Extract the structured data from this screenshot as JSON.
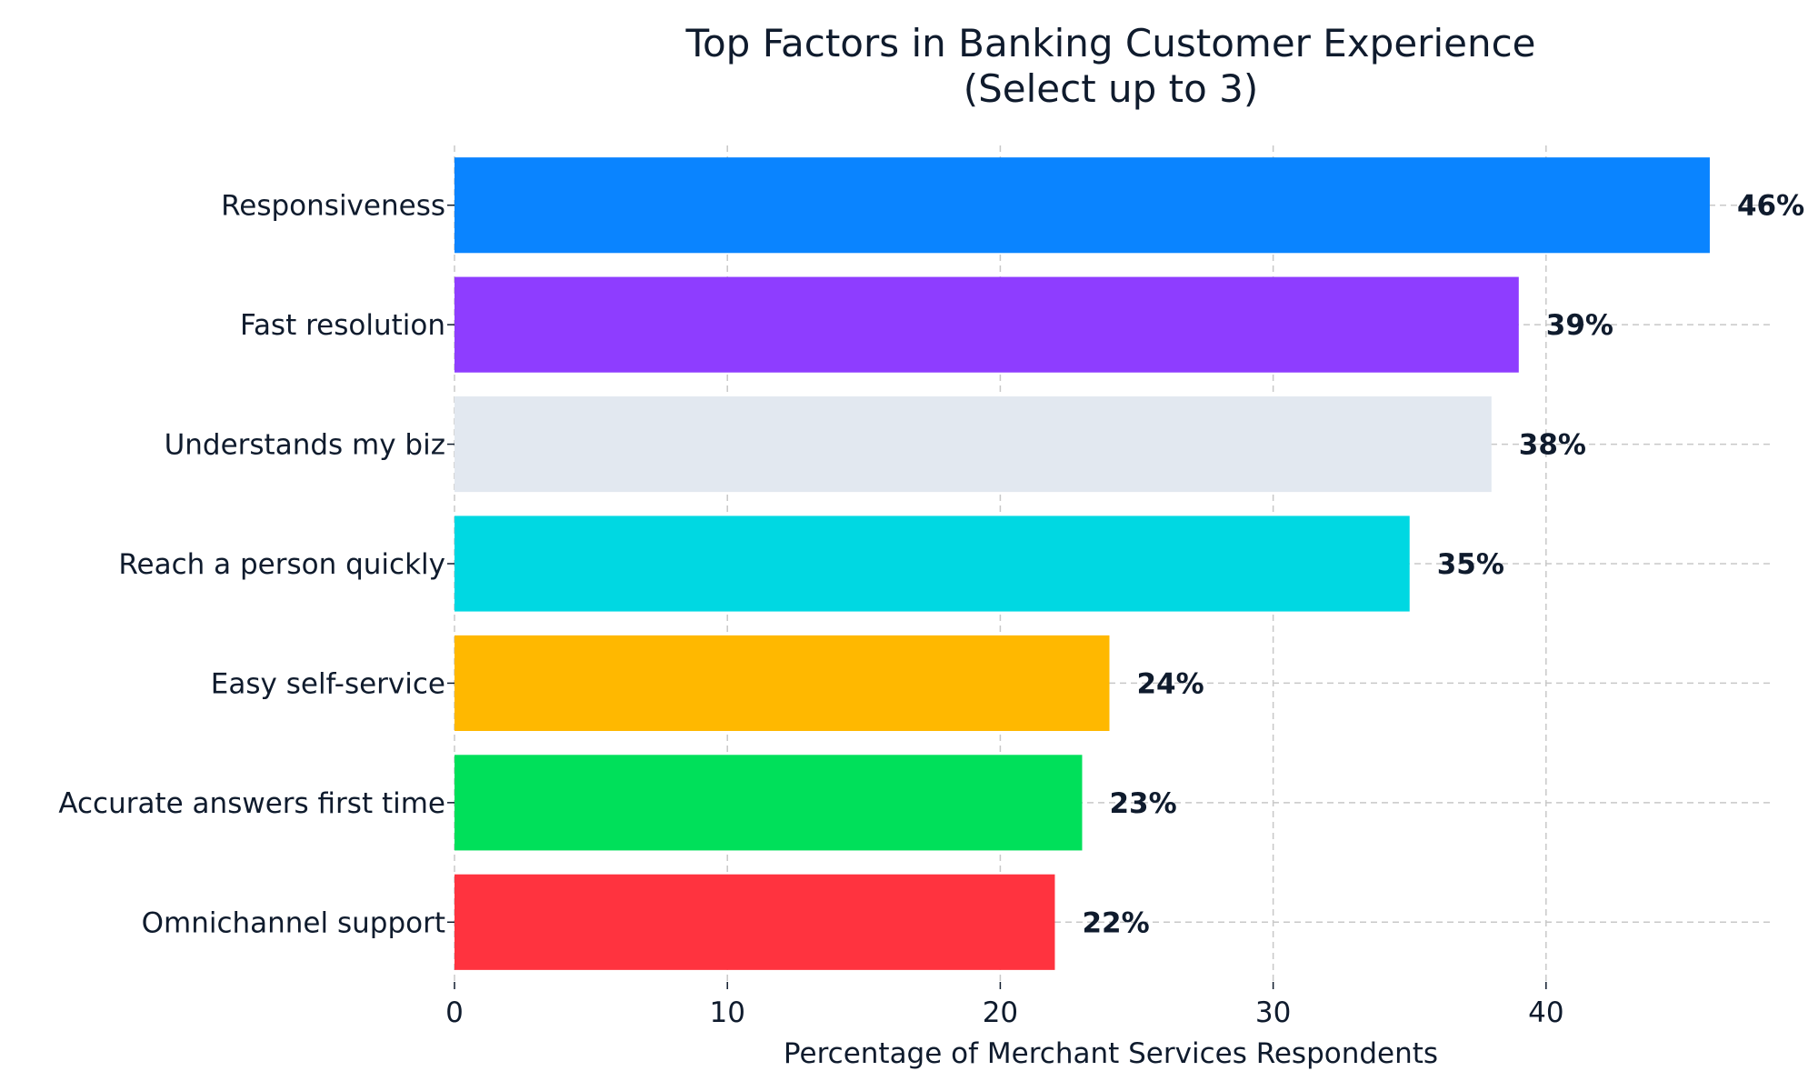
{
  "chart_data": {
    "type": "bar",
    "orientation": "horizontal",
    "title": "Top Factors in Banking Customer Experience",
    "subtitle": "(Select up to 3)",
    "xlabel": "Percentage of Merchant Services Respondents",
    "ylabel": "",
    "xlim": [
      0,
      48.3
    ],
    "xticks": [
      0,
      10,
      20,
      30,
      40
    ],
    "grid": true,
    "categories": [
      "Responsiveness",
      "Fast resolution",
      "Understands my biz",
      "Reach a person quickly",
      "Easy self-service",
      "Accurate answers first time",
      "Omnichannel support"
    ],
    "values": [
      46,
      39,
      38,
      35,
      24,
      23,
      22
    ],
    "value_labels": [
      "46%",
      "39%",
      "38%",
      "35%",
      "24%",
      "23%",
      "22%"
    ],
    "colors": [
      "#0a84ff",
      "#8e3dff",
      "#e2e8f0",
      "#00d8e2",
      "#ffb800",
      "#00e05a",
      "#ff333f"
    ]
  }
}
